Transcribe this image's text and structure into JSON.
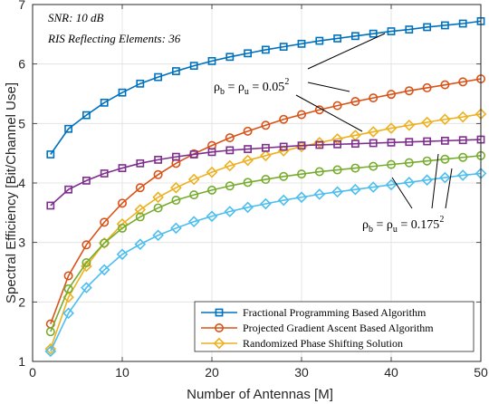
{
  "chart_data": {
    "type": "line",
    "xlabel": "Number of Antennas [M]",
    "ylabel": "Spectral Efficiency [Bit/Channel Use]",
    "xlim": [
      0,
      50
    ],
    "ylim": [
      1,
      7
    ],
    "xticks": [
      0,
      10,
      20,
      30,
      40,
      50
    ],
    "yticks": [
      1,
      2,
      3,
      4,
      5,
      6,
      7
    ],
    "grid": true,
    "legend_position": "bottom-right",
    "x": [
      2,
      4,
      6,
      8,
      10,
      12,
      14,
      16,
      18,
      20,
      22,
      24,
      26,
      28,
      30,
      32,
      34,
      36,
      38,
      40,
      42,
      44,
      46,
      48,
      50
    ],
    "series": [
      {
        "name": "Fractional Programming Based Algorithm",
        "legend": true,
        "color": "#0072BD",
        "marker": "square",
        "values": [
          4.48,
          4.91,
          5.14,
          5.35,
          5.52,
          5.67,
          5.78,
          5.88,
          5.97,
          6.05,
          6.12,
          6.18,
          6.24,
          6.29,
          6.34,
          6.39,
          6.43,
          6.47,
          6.51,
          6.55,
          6.58,
          6.62,
          6.65,
          6.68,
          6.72
        ]
      },
      {
        "name": "Projected Gradient Ascent Based Algorithm",
        "legend": true,
        "color": "#D95319",
        "marker": "circle",
        "values": [
          1.63,
          2.44,
          2.96,
          3.34,
          3.66,
          3.92,
          4.14,
          4.33,
          4.49,
          4.63,
          4.76,
          4.87,
          4.97,
          5.07,
          5.15,
          5.23,
          5.3,
          5.37,
          5.43,
          5.49,
          5.55,
          5.6,
          5.65,
          5.7,
          5.75
        ]
      },
      {
        "name": "Randomized Phase Shifting Solution",
        "legend": true,
        "color": "#EDB120",
        "marker": "diamond",
        "values": [
          1.21,
          2.08,
          2.6,
          2.99,
          3.31,
          3.55,
          3.76,
          3.92,
          4.06,
          4.18,
          4.29,
          4.38,
          4.46,
          4.54,
          4.61,
          4.68,
          4.74,
          4.8,
          4.86,
          4.92,
          4.97,
          5.02,
          5.07,
          5.11,
          5.16
        ]
      },
      {
        "name": "",
        "legend": false,
        "color": "#7E2F8E",
        "marker": "square",
        "values": [
          3.62,
          3.89,
          4.04,
          4.16,
          4.25,
          4.33,
          4.39,
          4.44,
          4.48,
          4.52,
          4.55,
          4.57,
          4.59,
          4.61,
          4.63,
          4.64,
          4.65,
          4.66,
          4.67,
          4.68,
          4.69,
          4.7,
          4.71,
          4.72,
          4.73
        ]
      },
      {
        "name": "",
        "legend": false,
        "color": "#77AC30",
        "marker": "circle",
        "values": [
          1.5,
          2.22,
          2.66,
          2.99,
          3.24,
          3.43,
          3.58,
          3.71,
          3.8,
          3.88,
          3.95,
          4.01,
          4.06,
          4.11,
          4.15,
          4.19,
          4.22,
          4.25,
          4.28,
          4.31,
          4.34,
          4.37,
          4.4,
          4.43,
          4.46
        ]
      },
      {
        "name": "",
        "legend": false,
        "color": "#4DBEEE",
        "marker": "diamond",
        "values": [
          1.17,
          1.81,
          2.24,
          2.54,
          2.8,
          2.97,
          3.12,
          3.24,
          3.35,
          3.44,
          3.52,
          3.59,
          3.65,
          3.71,
          3.76,
          3.81,
          3.85,
          3.89,
          3.93,
          3.97,
          4.01,
          4.05,
          4.09,
          4.13,
          4.16
        ]
      }
    ],
    "annotations": {
      "snr": "SNR: 10 dB",
      "ris": "RIS Reflecting Elements: 36",
      "rho_b": "ρ",
      "rho_u": "ρ",
      "sub_b": "b",
      "sub_u": "u",
      "eq": " = ",
      "value_high": " = 0.05",
      "value_low": " = 0.175",
      "exp": "2"
    }
  }
}
